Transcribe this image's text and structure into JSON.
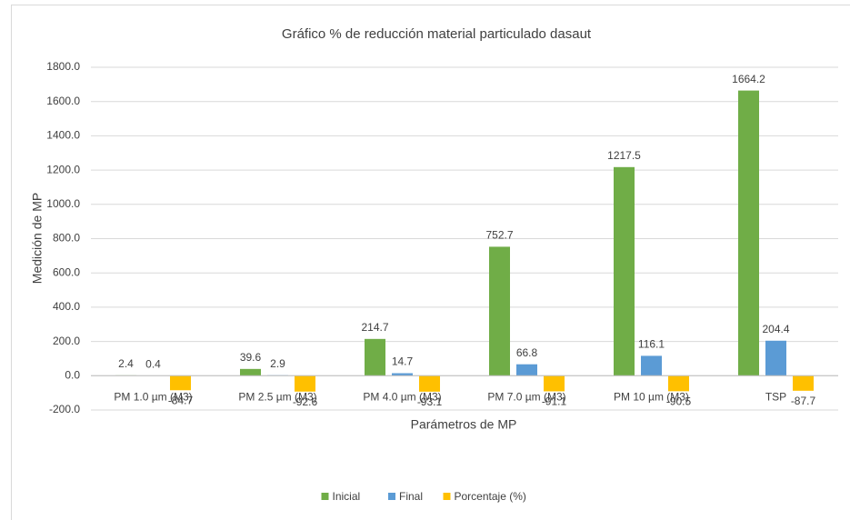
{
  "chart_data": {
    "type": "bar",
    "title": "Gráfico % de reducción material particulado dasaut",
    "x_label": "Parámetros de MP",
    "y_label": "Medición de MP",
    "categories": [
      "PM 1.0 µm (M3)",
      "PM 2.5 µm (M3)",
      "PM 4.0 µm (M3)",
      "PM 7.0 µm (M3)",
      "PM 10 µm (M3)",
      "TSP"
    ],
    "series": [
      {
        "name": "Inicial",
        "color": "#70ad47",
        "values": [
          2.4,
          39.6,
          214.7,
          752.7,
          1217.5,
          1664.2
        ]
      },
      {
        "name": "Final",
        "color": "#5b9bd5",
        "values": [
          0.4,
          2.9,
          14.7,
          66.8,
          116.1,
          204.4
        ]
      },
      {
        "name": "Porcentaje (%)",
        "color": "#ffc000",
        "values": [
          -84.7,
          -92.6,
          -93.1,
          -91.1,
          -90.5,
          -87.7
        ]
      }
    ],
    "ylim": [
      -200,
      1800
    ],
    "yticks": [
      {
        "value": -200,
        "label": "-200.0"
      },
      {
        "value": 0,
        "label": "0.0"
      },
      {
        "value": 200,
        "label": "200.0"
      },
      {
        "value": 400,
        "label": "400.0"
      },
      {
        "value": 600,
        "label": "600.0"
      },
      {
        "value": 800,
        "label": "800.0"
      },
      {
        "value": 1000,
        "label": "1000.0"
      },
      {
        "value": 1200,
        "label": "1200.0"
      },
      {
        "value": 1400,
        "label": "1400.0"
      },
      {
        "value": 1600,
        "label": "1600.0"
      },
      {
        "value": 1800,
        "label": "1800.0"
      }
    ],
    "grid": true,
    "legend": "bottom"
  }
}
